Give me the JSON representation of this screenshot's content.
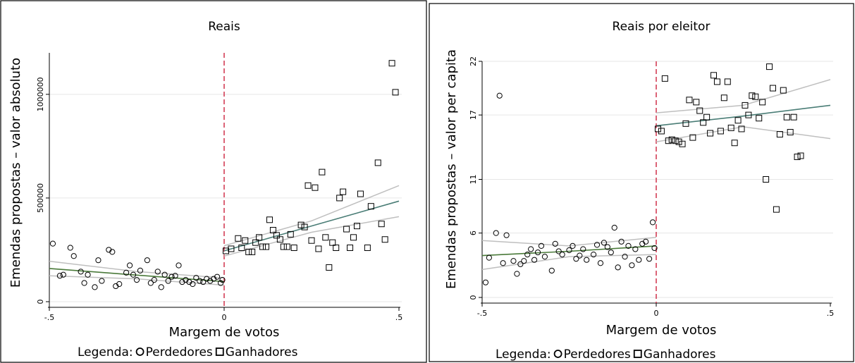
{
  "chart_data": [
    {
      "type": "scatter",
      "title": "Reais",
      "xlabel": "Margem de votos",
      "ylabel": "Emendas propostas – valor absoluto",
      "xlim": [
        -0.5,
        0.5
      ],
      "ylim": [
        0,
        1200000
      ],
      "x_ticks": [
        -0.5,
        0,
        0.5
      ],
      "x_tick_labels": [
        "-.5",
        "0",
        ".5"
      ],
      "y_ticks": [
        0,
        500000,
        1000000
      ],
      "y_tick_labels": [
        "0",
        "500000",
        "1000000"
      ],
      "grid": "horizontal",
      "cutoff_x": 0,
      "legend": {
        "title": "Legenda:",
        "items": [
          "Perdedores",
          "Ganhadores"
        ],
        "position": "bottom"
      },
      "series": [
        {
          "name": "Perdedores",
          "marker": "circle",
          "points": [
            [
              -0.49,
              280000
            ],
            [
              -0.47,
              125000
            ],
            [
              -0.46,
              130000
            ],
            [
              -0.44,
              260000
            ],
            [
              -0.43,
              220000
            ],
            [
              -0.41,
              145000
            ],
            [
              -0.4,
              90000
            ],
            [
              -0.39,
              130000
            ],
            [
              -0.37,
              70000
            ],
            [
              -0.36,
              200000
            ],
            [
              -0.35,
              100000
            ],
            [
              -0.33,
              250000
            ],
            [
              -0.32,
              240000
            ],
            [
              -0.31,
              75000
            ],
            [
              -0.3,
              85000
            ],
            [
              -0.28,
              140000
            ],
            [
              -0.27,
              175000
            ],
            [
              -0.26,
              130000
            ],
            [
              -0.25,
              105000
            ],
            [
              -0.24,
              150000
            ],
            [
              -0.22,
              200000
            ],
            [
              -0.21,
              90000
            ],
            [
              -0.2,
              105000
            ],
            [
              -0.19,
              145000
            ],
            [
              -0.18,
              70000
            ],
            [
              -0.17,
              130000
            ],
            [
              -0.16,
              100000
            ],
            [
              -0.15,
              120000
            ],
            [
              -0.14,
              125000
            ],
            [
              -0.13,
              175000
            ],
            [
              -0.12,
              95000
            ],
            [
              -0.11,
              105000
            ],
            [
              -0.1,
              95000
            ],
            [
              -0.09,
              85000
            ],
            [
              -0.08,
              115000
            ],
            [
              -0.07,
              100000
            ],
            [
              -0.06,
              95000
            ],
            [
              -0.05,
              110000
            ],
            [
              -0.04,
              100000
            ],
            [
              -0.03,
              110000
            ],
            [
              -0.02,
              120000
            ],
            [
              -0.01,
              90000
            ],
            [
              -0.005,
              105000
            ]
          ],
          "fit": {
            "x": [
              -0.5,
              -0.25,
              0
            ],
            "y": [
              160000,
              128000,
              97000
            ]
          },
          "ci_upper": {
            "x": [
              -0.5,
              -0.25,
              0
            ],
            "y": [
              195000,
              145000,
              115000
            ]
          },
          "ci_lower": {
            "x": [
              -0.5,
              -0.25,
              0
            ],
            "y": [
              125000,
              110000,
              80000
            ]
          }
        },
        {
          "name": "Ganhadores",
          "marker": "square",
          "points": [
            [
              0.005,
              245000
            ],
            [
              0.02,
              255000
            ],
            [
              0.04,
              305000
            ],
            [
              0.05,
              260000
            ],
            [
              0.06,
              295000
            ],
            [
              0.07,
              240000
            ],
            [
              0.08,
              240000
            ],
            [
              0.09,
              285000
            ],
            [
              0.1,
              310000
            ],
            [
              0.11,
              265000
            ],
            [
              0.12,
              265000
            ],
            [
              0.13,
              395000
            ],
            [
              0.14,
              345000
            ],
            [
              0.15,
              320000
            ],
            [
              0.16,
              300000
            ],
            [
              0.17,
              265000
            ],
            [
              0.18,
              265000
            ],
            [
              0.19,
              325000
            ],
            [
              0.2,
              260000
            ],
            [
              0.22,
              370000
            ],
            [
              0.23,
              360000
            ],
            [
              0.24,
              560000
            ],
            [
              0.25,
              295000
            ],
            [
              0.26,
              550000
            ],
            [
              0.27,
              255000
            ],
            [
              0.28,
              625000
            ],
            [
              0.29,
              310000
            ],
            [
              0.3,
              165000
            ],
            [
              0.31,
              285000
            ],
            [
              0.32,
              260000
            ],
            [
              0.33,
              500000
            ],
            [
              0.34,
              530000
            ],
            [
              0.35,
              350000
            ],
            [
              0.36,
              260000
            ],
            [
              0.37,
              310000
            ],
            [
              0.38,
              365000
            ],
            [
              0.39,
              520000
            ],
            [
              0.41,
              260000
            ],
            [
              0.42,
              460000
            ],
            [
              0.44,
              670000
            ],
            [
              0.45,
              375000
            ],
            [
              0.46,
              300000
            ],
            [
              0.48,
              1150000
            ],
            [
              0.49,
              1010000
            ]
          ],
          "fit": {
            "x": [
              0,
              0.25,
              0.5
            ],
            "y": [
              245000,
              365000,
              485000
            ]
          },
          "ci_upper": {
            "x": [
              0,
              0.25,
              0.5
            ],
            "y": [
              270000,
              390000,
              560000
            ]
          },
          "ci_lower": {
            "x": [
              0,
              0.25,
              0.5
            ],
            "y": [
              220000,
              335000,
              410000
            ]
          }
        }
      ]
    },
    {
      "type": "scatter",
      "title": "Reais por eleitor",
      "xlabel": "Margem de votos",
      "ylabel": "Emendas propostas – valor per capita",
      "xlim": [
        -0.5,
        0.5
      ],
      "ylim": [
        0,
        22
      ],
      "x_ticks": [
        -0.5,
        0,
        0.5
      ],
      "x_tick_labels": [
        "-.5",
        "0",
        ".5"
      ],
      "y_ticks": [
        0,
        6,
        11,
        17,
        22
      ],
      "y_tick_labels": [
        "0",
        "6",
        "11",
        "17",
        "22"
      ],
      "grid": "horizontal",
      "cutoff_x": 0,
      "legend": {
        "title": "Legenda:",
        "items": [
          "Perdedores",
          "Ganhadores"
        ],
        "position": "bottom"
      },
      "series": [
        {
          "name": "Perdedores",
          "marker": "circle",
          "points": [
            [
              -0.49,
              1.4
            ],
            [
              -0.48,
              3.7
            ],
            [
              -0.46,
              6.0
            ],
            [
              -0.45,
              18.8
            ],
            [
              -0.44,
              3.2
            ],
            [
              -0.43,
              5.8
            ],
            [
              -0.41,
              3.4
            ],
            [
              -0.4,
              2.2
            ],
            [
              -0.39,
              3.1
            ],
            [
              -0.38,
              3.4
            ],
            [
              -0.37,
              4.0
            ],
            [
              -0.36,
              4.5
            ],
            [
              -0.35,
              3.5
            ],
            [
              -0.34,
              4.2
            ],
            [
              -0.33,
              4.8
            ],
            [
              -0.32,
              3.8
            ],
            [
              -0.3,
              2.5
            ],
            [
              -0.29,
              5.0
            ],
            [
              -0.28,
              4.3
            ],
            [
              -0.27,
              4.0
            ],
            [
              -0.25,
              4.4
            ],
            [
              -0.24,
              4.8
            ],
            [
              -0.23,
              3.6
            ],
            [
              -0.22,
              3.9
            ],
            [
              -0.21,
              4.5
            ],
            [
              -0.2,
              3.5
            ],
            [
              -0.18,
              4.0
            ],
            [
              -0.17,
              4.9
            ],
            [
              -0.16,
              3.2
            ],
            [
              -0.15,
              5.1
            ],
            [
              -0.14,
              4.7
            ],
            [
              -0.13,
              4.2
            ],
            [
              -0.12,
              6.5
            ],
            [
              -0.11,
              2.8
            ],
            [
              -0.1,
              5.2
            ],
            [
              -0.09,
              3.8
            ],
            [
              -0.08,
              4.8
            ],
            [
              -0.07,
              3.0
            ],
            [
              -0.06,
              4.5
            ],
            [
              -0.05,
              3.5
            ],
            [
              -0.04,
              5.0
            ],
            [
              -0.03,
              5.2
            ],
            [
              -0.02,
              3.6
            ],
            [
              -0.01,
              7.0
            ],
            [
              -0.005,
              4.6
            ]
          ],
          "fit": {
            "x": [
              -0.5,
              -0.25,
              0
            ],
            "y": [
              3.9,
              4.3,
              4.8
            ]
          },
          "ci_upper": {
            "x": [
              -0.5,
              -0.25,
              0
            ],
            "y": [
              5.3,
              4.8,
              5.6
            ]
          },
          "ci_lower": {
            "x": [
              -0.5,
              -0.25,
              0
            ],
            "y": [
              2.6,
              3.8,
              4.0
            ]
          }
        },
        {
          "name": "Ganhadores",
          "marker": "square",
          "points": [
            [
              0.005,
              15.7
            ],
            [
              0.015,
              15.5
            ],
            [
              0.025,
              20.4
            ],
            [
              0.035,
              14.6
            ],
            [
              0.045,
              14.7
            ],
            [
              0.055,
              14.6
            ],
            [
              0.065,
              14.5
            ],
            [
              0.075,
              14.3
            ],
            [
              0.085,
              16.2
            ],
            [
              0.095,
              18.4
            ],
            [
              0.105,
              14.9
            ],
            [
              0.115,
              18.2
            ],
            [
              0.125,
              17.4
            ],
            [
              0.135,
              16.3
            ],
            [
              0.145,
              16.8
            ],
            [
              0.155,
              15.3
            ],
            [
              0.165,
              20.7
            ],
            [
              0.175,
              20.1
            ],
            [
              0.185,
              15.5
            ],
            [
              0.195,
              18.6
            ],
            [
              0.205,
              20.1
            ],
            [
              0.215,
              15.8
            ],
            [
              0.225,
              14.4
            ],
            [
              0.235,
              16.5
            ],
            [
              0.245,
              15.7
            ],
            [
              0.255,
              17.9
            ],
            [
              0.265,
              17.0
            ],
            [
              0.275,
              18.8
            ],
            [
              0.285,
              18.7
            ],
            [
              0.295,
              16.7
            ],
            [
              0.305,
              18.2
            ],
            [
              0.315,
              11.0
            ],
            [
              0.325,
              21.5
            ],
            [
              0.335,
              19.5
            ],
            [
              0.345,
              8.2
            ],
            [
              0.355,
              15.2
            ],
            [
              0.365,
              19.3
            ],
            [
              0.375,
              16.8
            ],
            [
              0.385,
              15.4
            ],
            [
              0.395,
              16.8
            ],
            [
              0.405,
              13.1
            ],
            [
              0.415,
              13.2
            ]
          ],
          "fit": {
            "x": [
              0,
              0.25,
              0.5
            ],
            "y": [
              16.0,
              16.9,
              17.9
            ]
          },
          "ci_upper": {
            "x": [
              0,
              0.25,
              0.5
            ],
            "y": [
              17.2,
              17.9,
              20.3
            ]
          },
          "ci_lower": {
            "x": [
              0,
              0.25,
              0.5
            ],
            "y": [
              14.5,
              15.9,
              14.8
            ]
          }
        }
      ]
    }
  ]
}
